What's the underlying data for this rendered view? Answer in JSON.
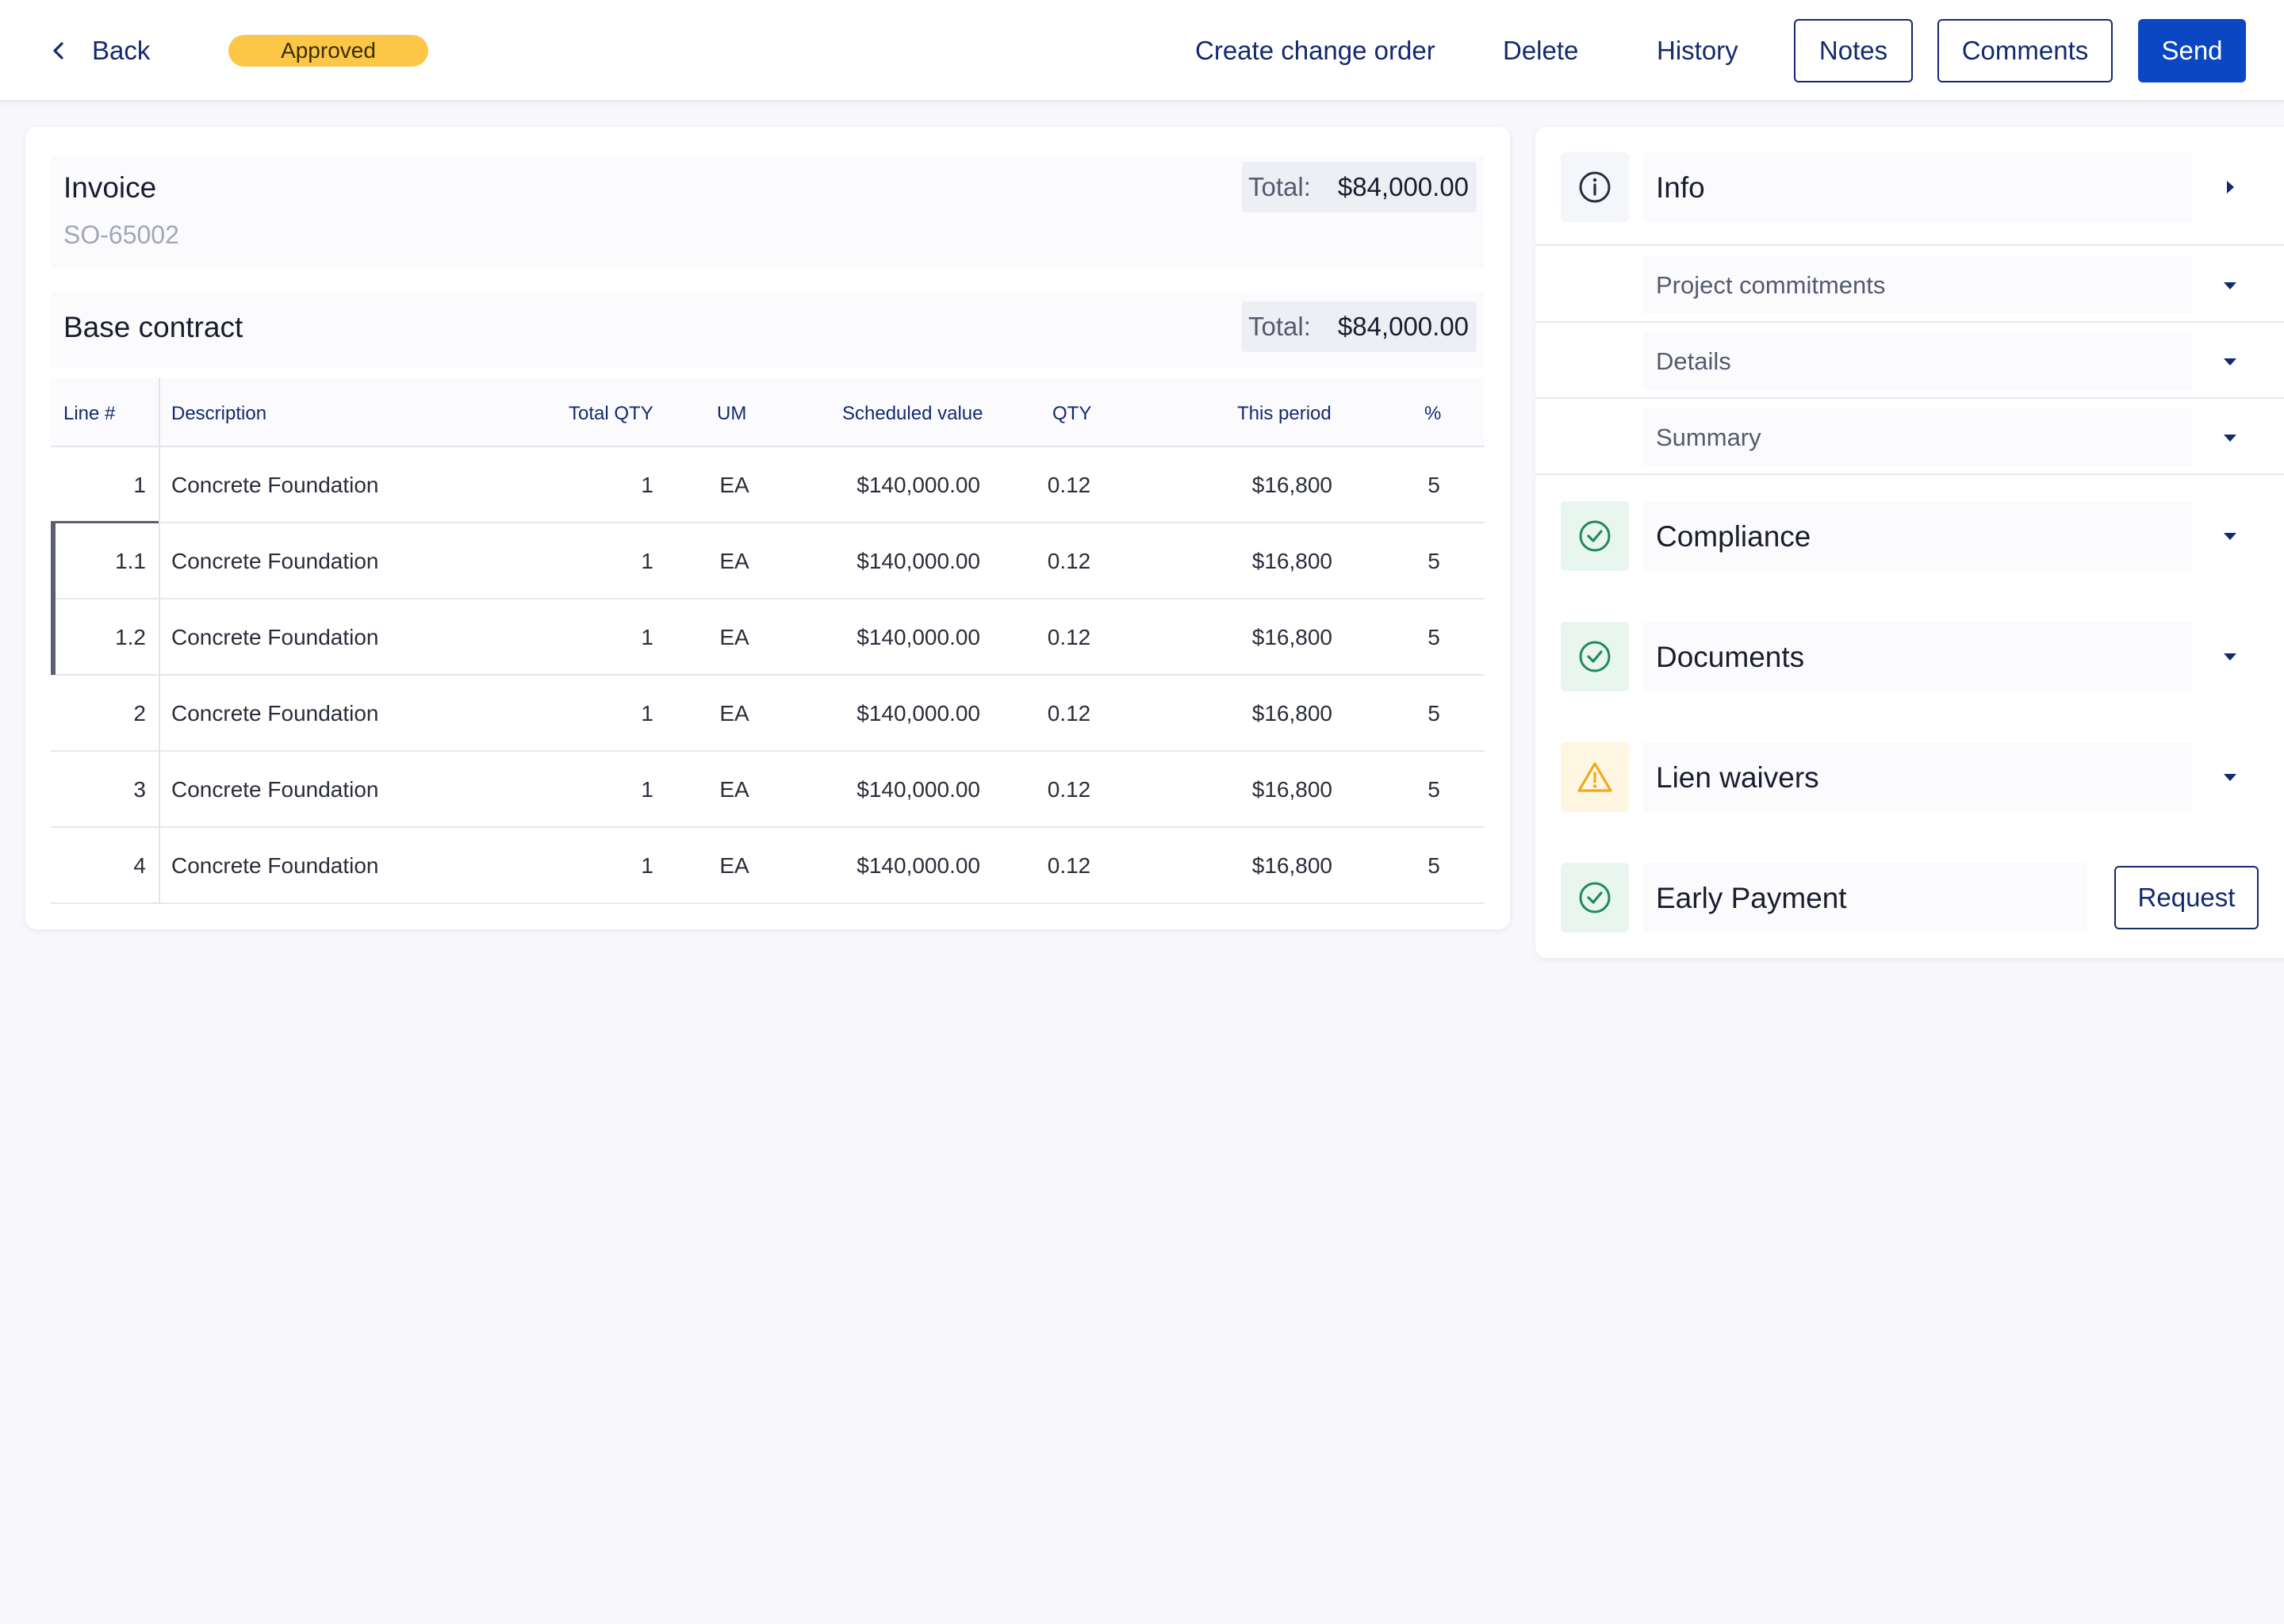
{
  "header": {
    "back_label": "Back",
    "status": "Approved",
    "actions": {
      "create_change_order": "Create change order",
      "delete": "Delete",
      "history": "History",
      "notes": "Notes",
      "comments": "Comments",
      "send": "Send"
    }
  },
  "invoice": {
    "title": "Invoice",
    "number": "SO-65002",
    "total_label": "Total:",
    "total_value": "$84,000.00"
  },
  "base_contract": {
    "title": "Base contract",
    "total_label": "Total:",
    "total_value": "$84,000.00"
  },
  "table": {
    "columns": [
      "Line #",
      "Description",
      "Total QTY",
      "UM",
      "Scheduled value",
      "QTY",
      "This period",
      "%"
    ],
    "rows": [
      {
        "line": "1",
        "description": "Concrete Foundation",
        "total_qty": "1",
        "um": "EA",
        "scheduled": "$140,000.00",
        "qty": "0.12",
        "period": "$16,800",
        "pct": "5"
      },
      {
        "line": "1.1",
        "description": "Concrete Foundation",
        "total_qty": "1",
        "um": "EA",
        "scheduled": "$140,000.00",
        "qty": "0.12",
        "period": "$16,800",
        "pct": "5"
      },
      {
        "line": "1.2",
        "description": "Concrete Foundation",
        "total_qty": "1",
        "um": "EA",
        "scheduled": "$140,000.00",
        "qty": "0.12",
        "period": "$16,800",
        "pct": "5"
      },
      {
        "line": "2",
        "description": "Concrete Foundation",
        "total_qty": "1",
        "um": "EA",
        "scheduled": "$140,000.00",
        "qty": "0.12",
        "period": "$16,800",
        "pct": "5"
      },
      {
        "line": "3",
        "description": "Concrete Foundation",
        "total_qty": "1",
        "um": "EA",
        "scheduled": "$140,000.00",
        "qty": "0.12",
        "period": "$16,800",
        "pct": "5"
      },
      {
        "line": "4",
        "description": "Concrete Foundation",
        "total_qty": "1",
        "um": "EA",
        "scheduled": "$140,000.00",
        "qty": "0.12",
        "period": "$16,800",
        "pct": "5"
      }
    ]
  },
  "side_panel": {
    "info": {
      "label": "Info",
      "icon": "info-icon"
    },
    "info_sub": [
      "Project commitments",
      "Details",
      "Summary"
    ],
    "compliance": {
      "label": "Compliance",
      "icon": "check-circle-icon"
    },
    "documents": {
      "label": "Documents",
      "icon": "check-circle-icon"
    },
    "lien_waivers": {
      "label": "Lien waivers",
      "icon": "warning-triangle-icon"
    },
    "early_payment": {
      "label": "Early Payment",
      "icon": "check-circle-icon",
      "request_label": "Request"
    }
  },
  "colors": {
    "brand_navy": "#142a6e",
    "primary_blue": "#0b47c2",
    "approved_yellow": "#fcc647",
    "success_green": "#1f8a5b",
    "warning_amber": "#f0a81c"
  }
}
